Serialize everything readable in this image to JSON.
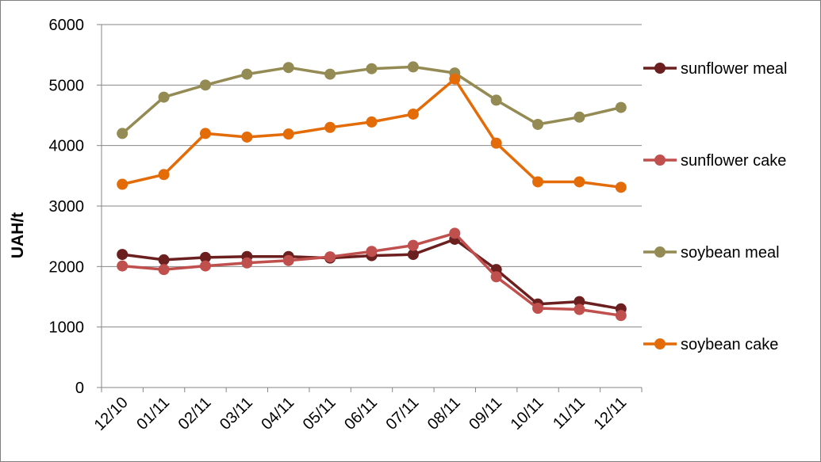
{
  "chart_data": {
    "type": "line",
    "title": "",
    "xlabel": "",
    "ylabel": "UAH/t",
    "ylim": [
      0,
      6000
    ],
    "yticks": [
      "0",
      "1000",
      "2000",
      "3000",
      "4000",
      "5000",
      "6000"
    ],
    "categories": [
      "12/10",
      "01/11",
      "02/11",
      "03/11",
      "04/11",
      "05/11",
      "06/11",
      "07/11",
      "08/11",
      "09/11",
      "10/11",
      "11/11",
      "12/11"
    ],
    "grid": "horizontal",
    "legend_position": "right",
    "series": [
      {
        "name": "sunflower meal",
        "color": "#6b1f1f",
        "values": [
          2200,
          2110,
          2150,
          2165,
          2165,
          2140,
          2180,
          2200,
          2450,
          1950,
          1380,
          1420,
          1300
        ]
      },
      {
        "name": "sunflower cake",
        "color": "#c0504d",
        "values": [
          2010,
          1950,
          2010,
          2060,
          2100,
          2160,
          2250,
          2350,
          2550,
          1830,
          1310,
          1290,
          1190
        ]
      },
      {
        "name": "soybean meal",
        "color": "#948a54",
        "values": [
          4200,
          4800,
          5000,
          5180,
          5290,
          5180,
          5270,
          5300,
          5200,
          4750,
          4350,
          4470,
          4630
        ]
      },
      {
        "name": "soybean cake",
        "color": "#e36c09",
        "values": [
          3360,
          3520,
          4200,
          4140,
          4190,
          4300,
          4390,
          4520,
          5100,
          4040,
          3400,
          3400,
          3310
        ]
      }
    ]
  }
}
